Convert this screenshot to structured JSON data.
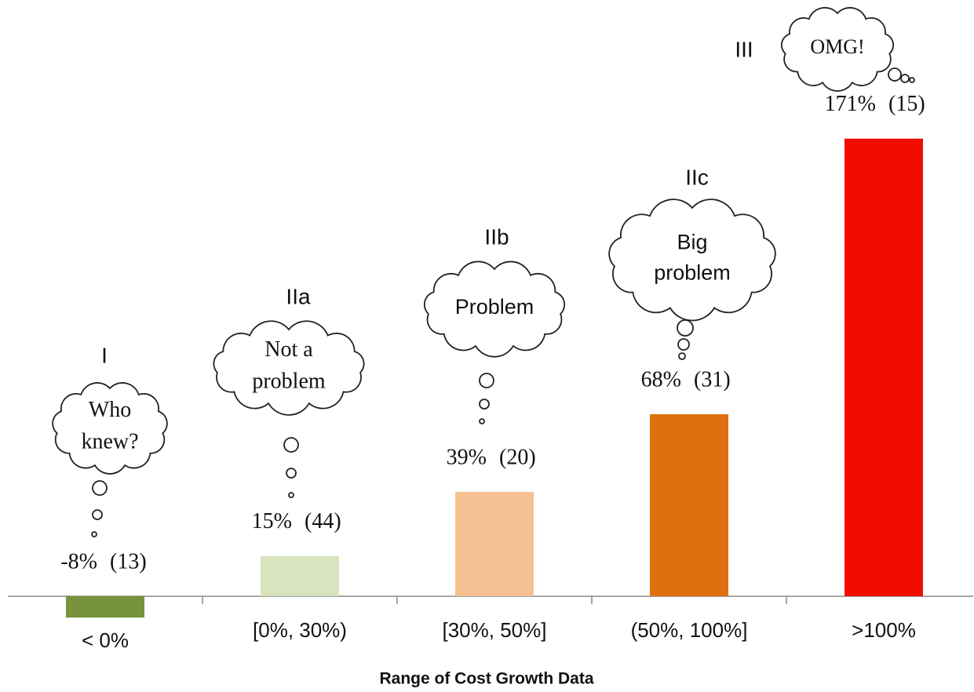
{
  "chart_data": {
    "type": "bar",
    "x_label": "Range of Cost Growth Data",
    "categories": [
      "< 0%",
      "[0%, 30%)",
      "[30%, 50%]",
      "(50%, 100%]",
      ">100%"
    ],
    "values": [
      -8,
      15,
      39,
      68,
      171
    ],
    "value_labels": [
      "-8%",
      "15%",
      "39%",
      "68%",
      "171%"
    ],
    "counts": [
      "(13)",
      "(44)",
      "(20)",
      "(31)",
      "(15)"
    ],
    "colors": [
      "#77933c",
      "#d7e4bd",
      "#f5c192",
      "#e0700f",
      "#f20c00"
    ],
    "ylim": [
      -10,
      180
    ],
    "annotations": [
      {
        "group": "I",
        "thought": [
          "Who",
          "knew?"
        ]
      },
      {
        "group": "IIa",
        "thought": [
          "Not a",
          "problem"
        ]
      },
      {
        "group": "IIb",
        "thought": [
          "Problem"
        ]
      },
      {
        "group": "IIc",
        "thought": [
          "Big",
          "problem"
        ]
      },
      {
        "group": "III",
        "thought": [
          "OMG!"
        ]
      }
    ]
  }
}
